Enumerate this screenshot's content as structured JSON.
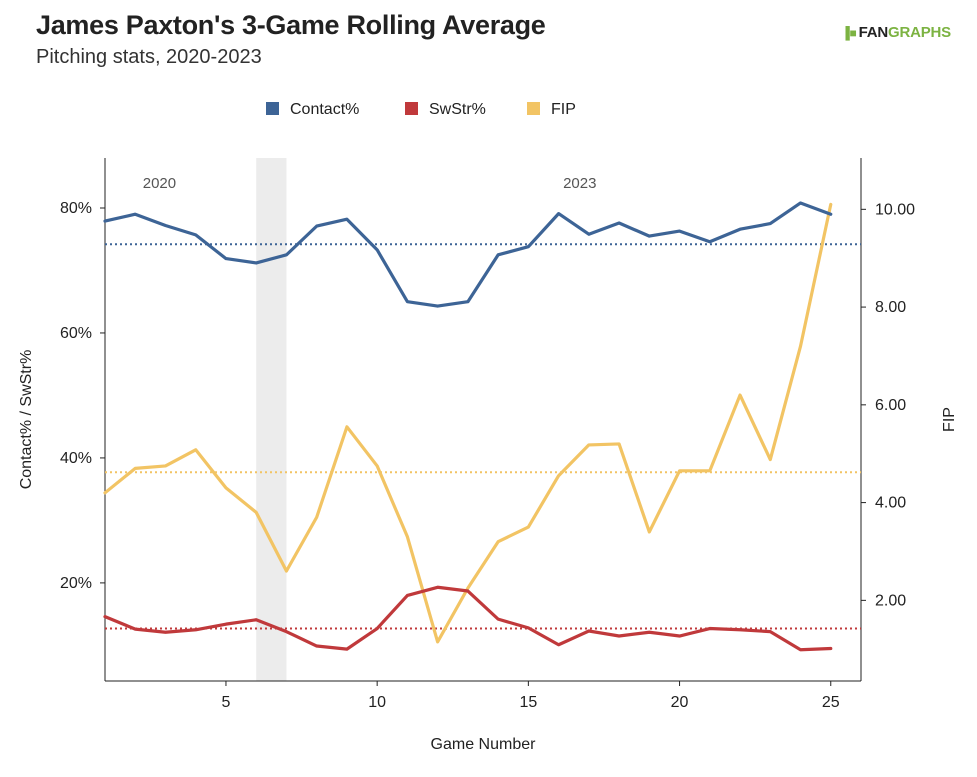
{
  "header": {
    "title": "James Paxton's 3-Game Rolling Average",
    "subtitle": "Pitching stats, 2020-2023",
    "logo_mark": "▐■",
    "logo_fan": "FAN",
    "logo_graphs": "GRAPHS"
  },
  "chart_data": {
    "type": "line",
    "xlabel": "Game Number",
    "ylabel_left": "Contact% / SwStr%",
    "ylabel_right": "FIP",
    "x": [
      1,
      2,
      3,
      4,
      5,
      6,
      7,
      8,
      9,
      10,
      11,
      12,
      13,
      14,
      15,
      16,
      17,
      18,
      19,
      20,
      21,
      22,
      23,
      24,
      25
    ],
    "xlim": [
      1,
      26
    ],
    "ylim_left": [
      0.043,
      0.88
    ],
    "ylim_right": [
      0.35,
      11.05
    ],
    "x_ticks": [
      5,
      10,
      15,
      20,
      25
    ],
    "x_tick_labels": [
      "5",
      "10",
      "15",
      "20",
      "25"
    ],
    "y_left_ticks": [
      0.2,
      0.4,
      0.6,
      0.8
    ],
    "y_left_tick_labels": [
      "20%",
      "40%",
      "60%",
      "80%"
    ],
    "y_right_ticks": [
      2,
      4,
      6,
      8,
      10
    ],
    "y_right_tick_labels": [
      "2.00",
      "4.00",
      "6.00",
      "8.00",
      "10.00"
    ],
    "shaded_band": [
      6,
      7
    ],
    "era_labels": [
      {
        "text": "2020",
        "x": 2.8
      },
      {
        "text": "2023",
        "x": 16.7
      }
    ],
    "legend_position": "top",
    "series": [
      {
        "name": "Contact%",
        "axis": "left",
        "color": "#3d6496",
        "average": 0.742,
        "values": [
          0.779,
          0.79,
          0.772,
          0.757,
          0.719,
          0.712,
          0.725,
          0.771,
          0.782,
          0.733,
          0.65,
          0.643,
          0.65,
          0.725,
          0.738,
          0.791,
          0.758,
          0.776,
          0.755,
          0.763,
          0.746,
          0.766,
          0.775,
          0.808,
          0.79
        ]
      },
      {
        "name": "SwStr%",
        "axis": "left",
        "color": "#c0393b",
        "average": 0.127,
        "values": [
          0.146,
          0.126,
          0.121,
          0.125,
          0.134,
          0.141,
          0.122,
          0.099,
          0.094,
          0.127,
          0.18,
          0.193,
          0.187,
          0.142,
          0.128,
          0.101,
          0.123,
          0.115,
          0.121,
          0.115,
          0.127,
          0.125,
          0.122,
          0.093,
          0.095
        ]
      },
      {
        "name": "FIP",
        "axis": "right",
        "color": "#f2c464",
        "average": 4.62,
        "values": [
          4.2,
          4.7,
          4.75,
          5.08,
          4.3,
          3.8,
          2.6,
          3.7,
          5.55,
          4.75,
          3.3,
          1.15,
          2.25,
          3.2,
          3.5,
          4.55,
          5.18,
          5.2,
          3.4,
          4.65,
          4.65,
          6.2,
          4.88,
          7.2,
          10.1
        ]
      }
    ]
  }
}
